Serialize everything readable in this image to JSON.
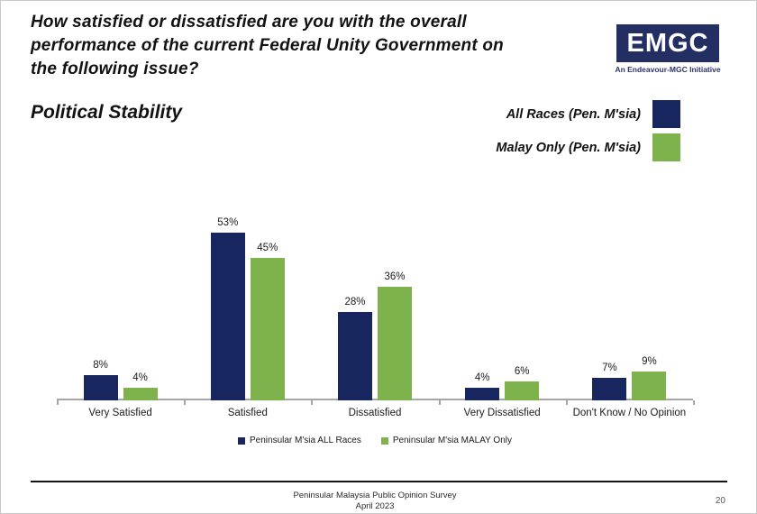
{
  "header": {
    "title_lines": [
      "How satisfied or dissatisfied are you with the overall",
      "performance of the current Federal Unity Government on",
      "the following issue?"
    ],
    "logo": {
      "text": "EMGC",
      "tagline": "An Endeavour-MGC Initiative",
      "box_color": "#232F63"
    }
  },
  "subtitle": "Political Stability",
  "legend_top": [
    {
      "label": "All Races (Pen. M'sia)",
      "color": "#17265E"
    },
    {
      "label": "Malay Only (Pen. M'sia)",
      "color": "#7EB24C"
    }
  ],
  "chart_data": {
    "type": "bar",
    "title": "Political Stability",
    "categories": [
      "Very Satisfied",
      "Satisfied",
      "Dissatisfied",
      "Very Dissatisfied",
      "Don't Know / No Opinion"
    ],
    "series": [
      {
        "name": "Peninsular M'sia ALL Races",
        "color": "#17265E",
        "values": [
          8,
          53,
          28,
          4,
          7
        ]
      },
      {
        "name": "Peninsular M'sia MALAY Only",
        "color": "#7EB24C",
        "values": [
          4,
          45,
          36,
          6,
          9
        ]
      }
    ],
    "value_suffix": "%",
    "ylim": [
      0,
      60
    ],
    "grid": false,
    "data_labels": true,
    "legend_position": "bottom",
    "axis_color": "#A6A6A6"
  },
  "footer": {
    "line1": "Peninsular Malaysia Public Opinion Survey",
    "line2": "April 2023",
    "page_number": "20"
  }
}
